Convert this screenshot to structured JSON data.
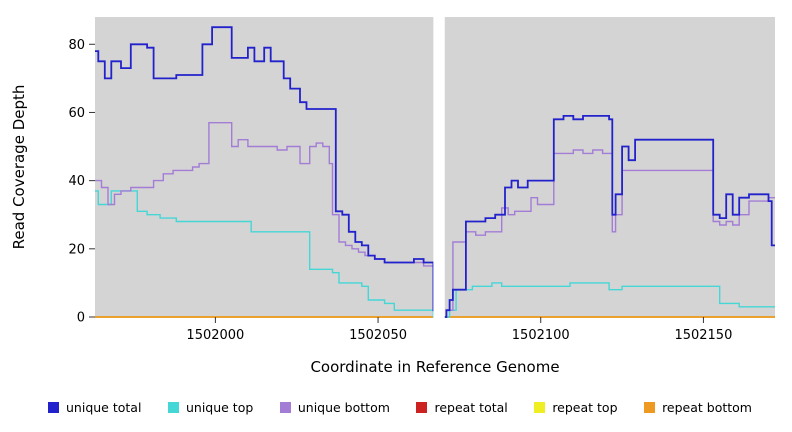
{
  "figure": {
    "xlabel": "Coordinate in Reference Genome",
    "ylabel": "Read Coverage Depth"
  },
  "chart_data": {
    "type": "line",
    "line_style": "step-after",
    "title": "",
    "xlabel": "Coordinate in Reference Genome",
    "ylabel": "Read Coverage Depth",
    "xlim": [
      1501963,
      1502172
    ],
    "ylim": [
      0,
      88
    ],
    "x_ticks": [
      1502000,
      1502050,
      1502100,
      1502150
    ],
    "y_ticks": [
      0,
      20,
      40,
      60,
      80
    ],
    "grid": false,
    "plot_bg": "#d4d4d4",
    "gap_band": {
      "x0": 1502067,
      "x1": 1502070.5,
      "color": "#ffffff"
    },
    "legend_position": "bottom",
    "draw_order": [
      3,
      4,
      5,
      1,
      2,
      0
    ],
    "series": [
      {
        "name": "unique total",
        "color": "#2222cc",
        "width": 1.8,
        "points": [
          [
            1501963,
            78
          ],
          [
            1501964,
            75
          ],
          [
            1501966,
            70
          ],
          [
            1501968,
            75
          ],
          [
            1501971,
            73
          ],
          [
            1501974,
            80
          ],
          [
            1501979,
            79
          ],
          [
            1501981,
            70
          ],
          [
            1501985,
            70
          ],
          [
            1501988,
            71
          ],
          [
            1501993,
            71
          ],
          [
            1501996,
            80
          ],
          [
            1501999,
            85
          ],
          [
            1502004,
            85
          ],
          [
            1502005,
            76
          ],
          [
            1502008,
            76
          ],
          [
            1502010,
            79
          ],
          [
            1502012,
            75
          ],
          [
            1502015,
            79
          ],
          [
            1502017,
            75
          ],
          [
            1502019,
            75
          ],
          [
            1502021,
            70
          ],
          [
            1502023,
            67
          ],
          [
            1502026,
            63
          ],
          [
            1502028,
            61
          ],
          [
            1502036,
            61
          ],
          [
            1502037,
            31
          ],
          [
            1502039,
            30
          ],
          [
            1502041,
            25
          ],
          [
            1502043,
            22
          ],
          [
            1502045,
            21
          ],
          [
            1502047,
            18
          ],
          [
            1502049,
            17
          ],
          [
            1502052,
            16
          ],
          [
            1502058,
            16
          ],
          [
            1502061,
            17
          ],
          [
            1502064,
            16
          ],
          [
            1502066,
            16
          ],
          [
            1502067,
            2
          ],
          [
            1502068,
            0
          ],
          [
            1502070,
            0
          ],
          [
            1502071,
            2
          ],
          [
            1502072,
            5
          ],
          [
            1502073,
            8
          ],
          [
            1502075,
            8
          ],
          [
            1502077,
            28
          ],
          [
            1502080,
            28
          ],
          [
            1502083,
            29
          ],
          [
            1502086,
            30
          ],
          [
            1502089,
            38
          ],
          [
            1502091,
            40
          ],
          [
            1502093,
            38
          ],
          [
            1502096,
            40
          ],
          [
            1502103,
            40
          ],
          [
            1502104,
            58
          ],
          [
            1502107,
            59
          ],
          [
            1502110,
            58
          ],
          [
            1502113,
            59
          ],
          [
            1502119,
            59
          ],
          [
            1502121,
            58
          ],
          [
            1502122,
            30
          ],
          [
            1502123,
            36
          ],
          [
            1502125,
            50
          ],
          [
            1502127,
            46
          ],
          [
            1502129,
            52
          ],
          [
            1502138,
            52
          ],
          [
            1502150,
            52
          ],
          [
            1502153,
            30
          ],
          [
            1502155,
            29
          ],
          [
            1502157,
            36
          ],
          [
            1502159,
            30
          ],
          [
            1502161,
            35
          ],
          [
            1502164,
            36
          ],
          [
            1502168,
            36
          ],
          [
            1502170,
            34
          ],
          [
            1502171,
            21
          ]
        ]
      },
      {
        "name": "unique top",
        "color": "#45d6d6",
        "width": 1.4,
        "points": [
          [
            1501963,
            37
          ],
          [
            1501964,
            33
          ],
          [
            1501966,
            33
          ],
          [
            1501968,
            37
          ],
          [
            1501974,
            37
          ],
          [
            1501976,
            31
          ],
          [
            1501979,
            30
          ],
          [
            1501983,
            29
          ],
          [
            1501988,
            28
          ],
          [
            1502003,
            28
          ],
          [
            1502008,
            28
          ],
          [
            1502011,
            25
          ],
          [
            1502018,
            25
          ],
          [
            1502028,
            25
          ],
          [
            1502029,
            14
          ],
          [
            1502033,
            14
          ],
          [
            1502036,
            13
          ],
          [
            1502038,
            10
          ],
          [
            1502043,
            10
          ],
          [
            1502045,
            9
          ],
          [
            1502047,
            5
          ],
          [
            1502052,
            4
          ],
          [
            1502055,
            2
          ],
          [
            1502065,
            2
          ],
          [
            1502067,
            0
          ],
          [
            1502070,
            0
          ],
          [
            1502072,
            2
          ],
          [
            1502074,
            8
          ],
          [
            1502076,
            8
          ],
          [
            1502079,
            9
          ],
          [
            1502082,
            9
          ],
          [
            1502085,
            10
          ],
          [
            1502088,
            9
          ],
          [
            1502100,
            9
          ],
          [
            1502109,
            10
          ],
          [
            1502117,
            10
          ],
          [
            1502119,
            10
          ],
          [
            1502121,
            8
          ],
          [
            1502125,
            9
          ],
          [
            1502136,
            9
          ],
          [
            1502148,
            9
          ],
          [
            1502152,
            9
          ],
          [
            1502155,
            4
          ],
          [
            1502158,
            4
          ],
          [
            1502161,
            3
          ],
          [
            1502165,
            3
          ],
          [
            1502171,
            3
          ]
        ]
      },
      {
        "name": "unique bottom",
        "color": "#a37cd6",
        "width": 1.4,
        "points": [
          [
            1501963,
            40
          ],
          [
            1501965,
            38
          ],
          [
            1501967,
            33
          ],
          [
            1501969,
            36
          ],
          [
            1501971,
            37
          ],
          [
            1501974,
            38
          ],
          [
            1501978,
            38
          ],
          [
            1501981,
            40
          ],
          [
            1501984,
            42
          ],
          [
            1501987,
            43
          ],
          [
            1501990,
            43
          ],
          [
            1501993,
            44
          ],
          [
            1501995,
            45
          ],
          [
            1501998,
            57
          ],
          [
            1502003,
            57
          ],
          [
            1502005,
            50
          ],
          [
            1502007,
            52
          ],
          [
            1502010,
            50
          ],
          [
            1502016,
            50
          ],
          [
            1502019,
            49
          ],
          [
            1502022,
            50
          ],
          [
            1502026,
            45
          ],
          [
            1502029,
            50
          ],
          [
            1502031,
            51
          ],
          [
            1502033,
            50
          ],
          [
            1502035,
            45
          ],
          [
            1502036,
            30
          ],
          [
            1502038,
            22
          ],
          [
            1502040,
            21
          ],
          [
            1502042,
            20
          ],
          [
            1502044,
            19
          ],
          [
            1502046,
            18
          ],
          [
            1502049,
            17
          ],
          [
            1502052,
            16
          ],
          [
            1502058,
            16
          ],
          [
            1502061,
            16
          ],
          [
            1502064,
            15
          ],
          [
            1502066,
            15
          ],
          [
            1502067,
            2
          ],
          [
            1502068,
            0
          ],
          [
            1502070,
            0
          ],
          [
            1502071,
            2
          ],
          [
            1502073,
            22
          ],
          [
            1502075,
            22
          ],
          [
            1502077,
            25
          ],
          [
            1502080,
            24
          ],
          [
            1502083,
            25
          ],
          [
            1502086,
            25
          ],
          [
            1502088,
            32
          ],
          [
            1502090,
            30
          ],
          [
            1502092,
            31
          ],
          [
            1502095,
            31
          ],
          [
            1502097,
            35
          ],
          [
            1502099,
            33
          ],
          [
            1502102,
            33
          ],
          [
            1502104,
            48
          ],
          [
            1502107,
            48
          ],
          [
            1502110,
            49
          ],
          [
            1502113,
            48
          ],
          [
            1502116,
            49
          ],
          [
            1502119,
            48
          ],
          [
            1502121,
            48
          ],
          [
            1502122,
            25
          ],
          [
            1502123,
            30
          ],
          [
            1502125,
            43
          ],
          [
            1502132,
            43
          ],
          [
            1502144,
            43
          ],
          [
            1502150,
            43
          ],
          [
            1502153,
            28
          ],
          [
            1502155,
            27
          ],
          [
            1502157,
            28
          ],
          [
            1502159,
            27
          ],
          [
            1502161,
            30
          ],
          [
            1502164,
            34
          ],
          [
            1502168,
            34
          ],
          [
            1502170,
            35
          ],
          [
            1502171,
            35
          ]
        ]
      },
      {
        "name": "repeat total",
        "color": "#cc2222",
        "width": 1.4,
        "points": [
          [
            1501963,
            0
          ],
          [
            1502171,
            0
          ]
        ]
      },
      {
        "name": "repeat top",
        "color": "#eeee22",
        "width": 1.4,
        "points": [
          [
            1501963,
            0
          ],
          [
            1502171,
            0
          ]
        ]
      },
      {
        "name": "repeat bottom",
        "color": "#ee9922",
        "width": 1.4,
        "points": [
          [
            1501963,
            0
          ],
          [
            1502171,
            0
          ]
        ]
      }
    ]
  }
}
